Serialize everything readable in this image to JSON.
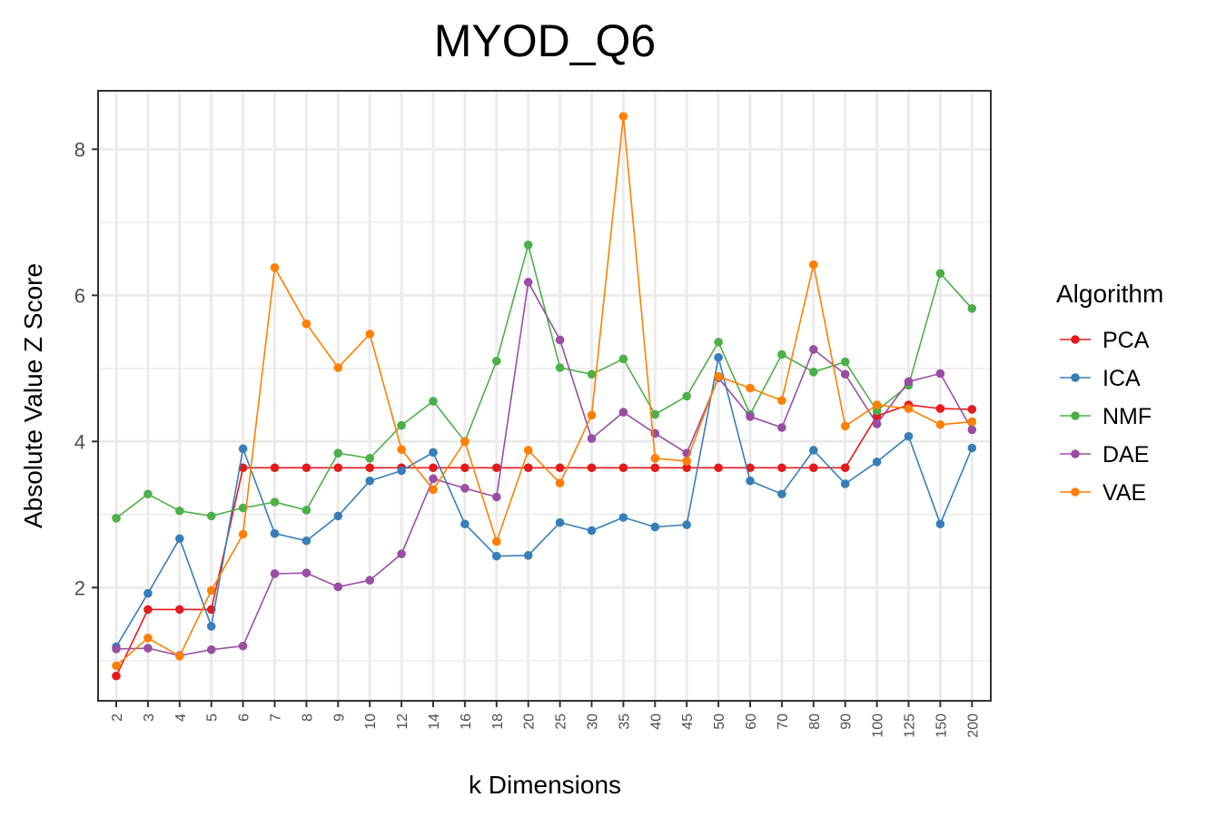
{
  "chart_data": {
    "type": "line",
    "title": "MYOD_Q6",
    "xlabel": "k Dimensions",
    "ylabel": "Absolute Value Z Score",
    "categories": [
      "2",
      "3",
      "4",
      "5",
      "6",
      "7",
      "8",
      "9",
      "10",
      "12",
      "14",
      "16",
      "18",
      "20",
      "25",
      "30",
      "35",
      "40",
      "45",
      "50",
      "60",
      "70",
      "80",
      "90",
      "100",
      "125",
      "150",
      "200"
    ],
    "ylim": [
      0.45,
      8.8
    ],
    "yticks": [
      2,
      4,
      6,
      8
    ],
    "grid": true,
    "legend": {
      "title": "Algorithm",
      "placement": "right"
    },
    "series": [
      {
        "name": "PCA",
        "color": "#E41A1C",
        "values": [
          0.79,
          1.7,
          1.7,
          1.7,
          3.64,
          3.64,
          3.64,
          3.64,
          3.64,
          3.64,
          3.64,
          3.64,
          3.64,
          3.64,
          3.64,
          3.64,
          3.64,
          3.64,
          3.64,
          3.64,
          3.64,
          3.64,
          3.64,
          3.64,
          4.35,
          4.5,
          4.45,
          4.44
        ]
      },
      {
        "name": "ICA",
        "color": "#377EB8",
        "values": [
          1.19,
          1.92,
          2.67,
          1.47,
          3.9,
          2.74,
          2.64,
          2.98,
          3.46,
          3.6,
          3.85,
          2.87,
          2.43,
          2.44,
          2.89,
          2.78,
          2.96,
          2.83,
          2.86,
          5.15,
          3.46,
          3.28,
          3.88,
          3.42,
          3.72,
          4.07,
          2.87,
          3.91
        ]
      },
      {
        "name": "NMF",
        "color": "#4DAF4A",
        "values": [
          2.95,
          3.28,
          3.05,
          2.98,
          3.09,
          3.17,
          3.06,
          3.84,
          3.77,
          4.22,
          4.55,
          4.0,
          5.1,
          6.69,
          5.01,
          4.92,
          5.13,
          4.37,
          4.62,
          5.36,
          4.37,
          5.19,
          4.95,
          5.09,
          4.42,
          4.77,
          6.3,
          5.82
        ]
      },
      {
        "name": "DAE",
        "color": "#984EA3",
        "values": [
          1.16,
          1.17,
          1.07,
          1.15,
          1.2,
          2.19,
          2.2,
          2.01,
          2.1,
          2.46,
          3.49,
          3.36,
          3.24,
          6.18,
          5.39,
          4.04,
          4.4,
          4.11,
          3.84,
          4.87,
          4.34,
          4.19,
          5.26,
          4.92,
          4.24,
          4.82,
          4.93,
          4.16
        ]
      },
      {
        "name": "VAE",
        "color": "#FF7F00",
        "values": [
          0.93,
          1.31,
          1.06,
          1.96,
          2.73,
          6.38,
          5.61,
          5.01,
          5.47,
          3.89,
          3.34,
          4.0,
          2.63,
          3.88,
          3.43,
          4.36,
          8.45,
          3.77,
          3.73,
          4.89,
          4.73,
          4.56,
          6.42,
          4.21,
          4.5,
          4.45,
          4.23,
          4.27
        ]
      }
    ]
  }
}
